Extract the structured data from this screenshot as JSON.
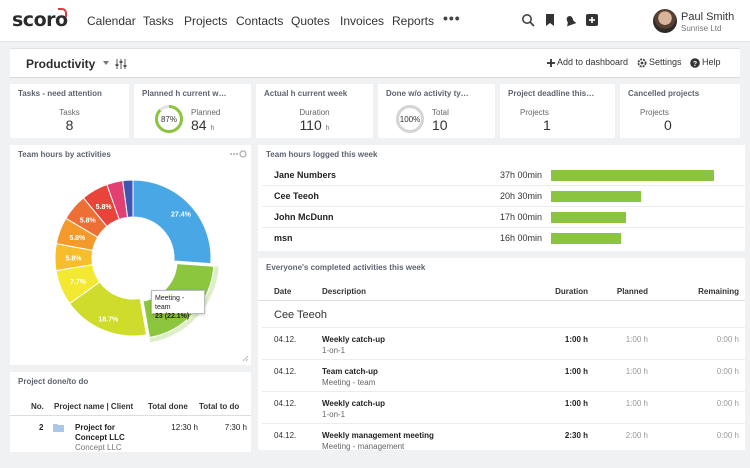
{
  "app": {
    "logo": "scoro",
    "nav": [
      "Calendar",
      "Tasks",
      "Projects",
      "Contacts",
      "Quotes",
      "Invoices",
      "Reports"
    ],
    "more": "•••",
    "user": {
      "name": "Paul Smith",
      "company": "Sunrise Ltd"
    }
  },
  "toolbar": {
    "title": "Productivity",
    "add_dashboard": "Add to dashboard",
    "settings": "Settings",
    "help": "Help"
  },
  "kpis": [
    {
      "title": "Tasks - need attention",
      "label": "Tasks",
      "value": "8",
      "unit": ""
    },
    {
      "title": "Planned h current w…",
      "label": "Planned",
      "value": "84",
      "unit": "h",
      "ring_label": "87%",
      "ring_pct": 87,
      "ring_color": "#8bc43f"
    },
    {
      "title": "Actual h current week",
      "label": "Duration",
      "value": "110",
      "unit": "h"
    },
    {
      "title": "Done w/o activity ty…",
      "label": "Total",
      "value": "10",
      "unit": "",
      "ring_label": "100%",
      "ring_pct": 100,
      "ring_color": "#d5d5d5"
    },
    {
      "title": "Project deadline this…",
      "label": "Projects",
      "value": "1",
      "unit": ""
    },
    {
      "title": "Cancelled projects",
      "label": "Projects",
      "value": "0",
      "unit": ""
    }
  ],
  "pie": {
    "title": "Team hours by activities",
    "tooltip_label": "Meeting - team",
    "tooltip_value": "23 (22.1%)",
    "chart_data": {
      "type": "pie",
      "title": "Team hours by activities",
      "slices": [
        {
          "label": "27.4%",
          "value": 27.4,
          "color": "#4aa7e6"
        },
        {
          "label": "22.1%",
          "value": 22.1,
          "color": "#8cc63f"
        },
        {
          "label": "18.7%",
          "value": 18.7,
          "color": "#cfdc2b"
        },
        {
          "label": "7.7%",
          "value": 7.7,
          "color": "#f3e832"
        },
        {
          "label": "5.8%",
          "value": 5.8,
          "color": "#f5be2a"
        },
        {
          "label": "5.8%",
          "value": 5.8,
          "color": "#f39a2a"
        },
        {
          "label": "5.8%",
          "value": 5.8,
          "color": "#ee6f35"
        },
        {
          "label": "5.8%",
          "value": 5.8,
          "color": "#e8443a"
        },
        {
          "label": "",
          "value": 3.5,
          "color": "#e23f72"
        },
        {
          "label": "",
          "value": 2.2,
          "color": "#3d57b0"
        }
      ]
    }
  },
  "team_hours": {
    "title": "Team hours logged this week",
    "max_minutes": 2220,
    "rows": [
      {
        "name": "Jane Numbers",
        "value": "37h 00min",
        "minutes": 2220
      },
      {
        "name": "Cee Teeoh",
        "value": "20h 30min",
        "minutes": 1230
      },
      {
        "name": "John McDunn",
        "value": "17h 00min",
        "minutes": 1020
      },
      {
        "name": "msn",
        "value": "16h 00min",
        "minutes": 960
      }
    ]
  },
  "activities": {
    "title": "Everyone's completed activities this week",
    "headers": {
      "date": "Date",
      "description": "Description",
      "duration": "Duration",
      "planned": "Planned",
      "remaining": "Remaining"
    },
    "group": "Cee Teeoh",
    "rows": [
      {
        "date": "04.12.",
        "title": "Weekly catch-up",
        "sub": "1-on-1",
        "duration": "1:00 h",
        "planned": "1:00 h",
        "remaining": "0:00 h"
      },
      {
        "date": "04.12.",
        "title": "Team catch-up",
        "sub": "Meeting - team",
        "duration": "1:00 h",
        "planned": "1:00 h",
        "remaining": "0:00 h"
      },
      {
        "date": "04.12.",
        "title": "Weekly catch-up",
        "sub": "1-on-1",
        "duration": "1:00 h",
        "planned": "1:00 h",
        "remaining": "0:00 h"
      },
      {
        "date": "04.12.",
        "title": "Weekly management meeting",
        "sub": "Meeting - management",
        "duration": "2:30 h",
        "planned": "2:00 h",
        "remaining": "0:00 h"
      }
    ]
  },
  "projects_done": {
    "title": "Project done/to do",
    "headers": {
      "no": "No.",
      "name": "Project name | Client",
      "done": "Total done",
      "todo": "Total to do"
    },
    "rows": [
      {
        "no": "2",
        "name": "Project for",
        "name2": "Concept LLC",
        "client": "Concept LLC",
        "done": "12:30 h",
        "todo": "7:30 h"
      }
    ]
  }
}
